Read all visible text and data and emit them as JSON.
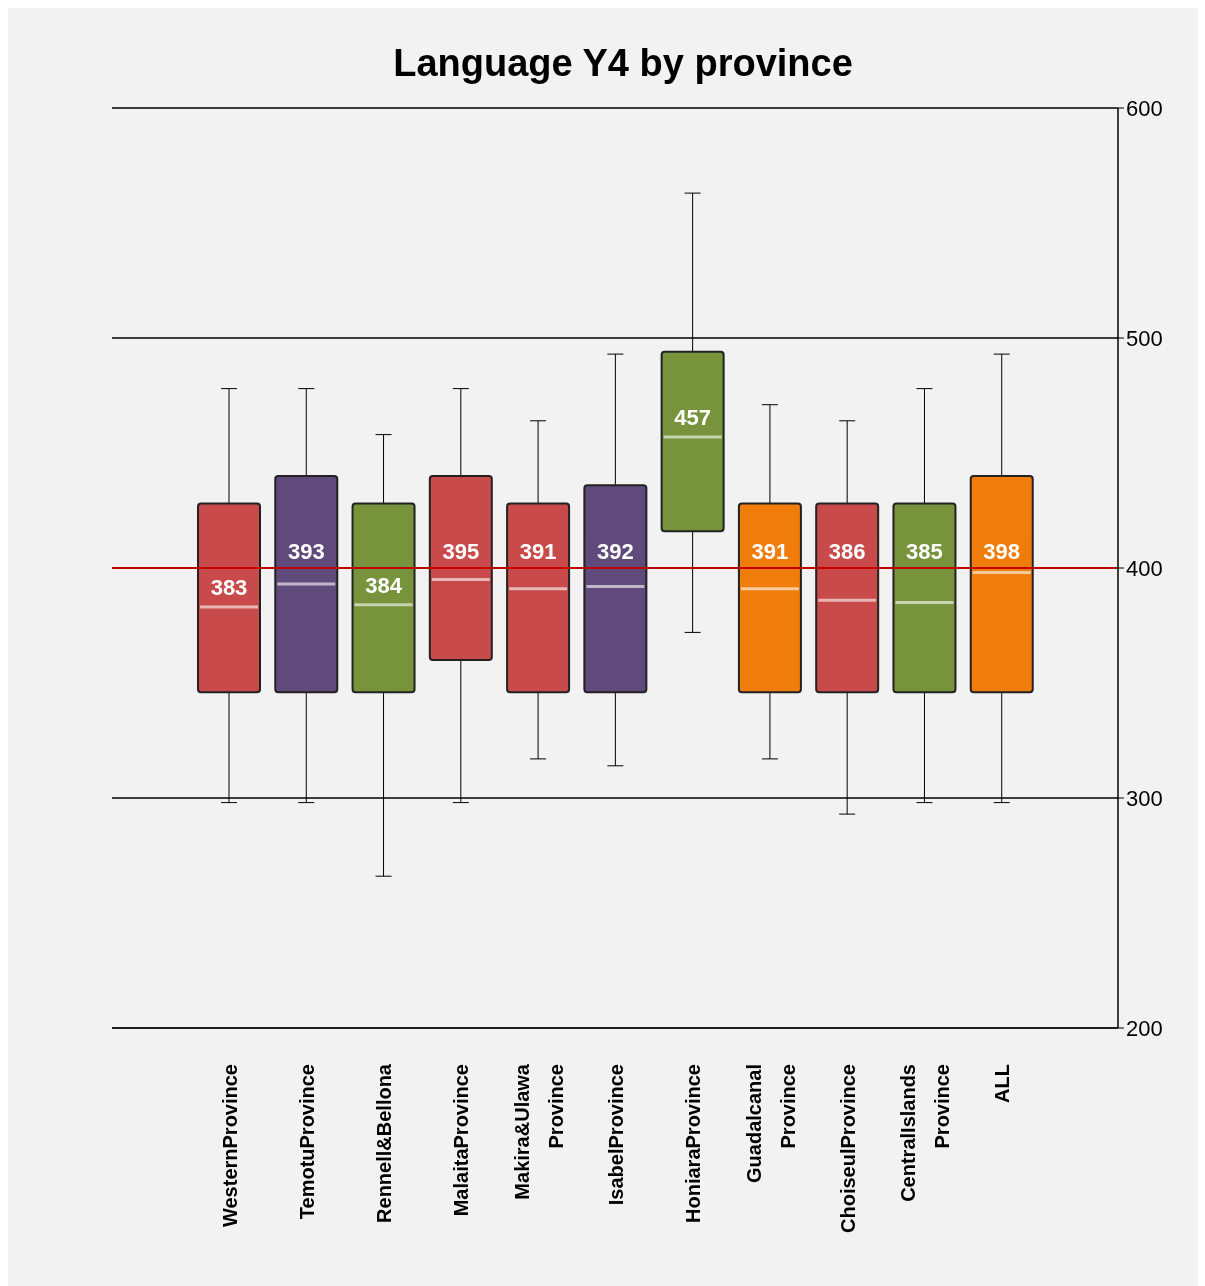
{
  "chart_data": {
    "type": "box",
    "title": "Language Y4 by province",
    "categories": [
      "WesternProvince",
      "TemotuProvince",
      "Rennell&Bellona",
      "MalaitaProvince",
      "Makira&Ulawa Province",
      "IsabelProvince",
      "HoniaraProvince",
      "Guadalcanal Province",
      "ChoiseulProvince",
      "CentralIslands Province",
      "ALL"
    ],
    "boxes": [
      {
        "low": 298,
        "q1": 346,
        "median": 383,
        "q3": 428,
        "high": 478
      },
      {
        "low": 298,
        "q1": 346,
        "median": 393,
        "q3": 440,
        "high": 478
      },
      {
        "low": 266,
        "q1": 346,
        "median": 384,
        "q3": 428,
        "high": 458
      },
      {
        "low": 298,
        "q1": 360,
        "median": 395,
        "q3": 440,
        "high": 478
      },
      {
        "low": 317,
        "q1": 346,
        "median": 391,
        "q3": 428,
        "high": 464
      },
      {
        "low": 314,
        "q1": 346,
        "median": 392,
        "q3": 436,
        "high": 493
      },
      {
        "low": 372,
        "q1": 416,
        "median": 457,
        "q3": 494,
        "high": 563
      },
      {
        "low": 317,
        "q1": 346,
        "median": 391,
        "q3": 428,
        "high": 471
      },
      {
        "low": 293,
        "q1": 346,
        "median": 386,
        "q3": 428,
        "high": 464
      },
      {
        "low": 298,
        "q1": 346,
        "median": 385,
        "q3": 428,
        "high": 478
      },
      {
        "low": 298,
        "q1": 346,
        "median": 398,
        "q3": 440,
        "high": 493
      }
    ],
    "colors": [
      "#c94a4a",
      "#604a7b",
      "#77933c",
      "#c94a4a",
      "#c94a4a",
      "#604a7b",
      "#77933c",
      "#f07c0c",
      "#c94a4a",
      "#77933c",
      "#f07c0c"
    ],
    "value_labels": [
      "383",
      "393",
      "384",
      "395",
      "391",
      "392",
      "457",
      "391",
      "386",
      "385",
      "398"
    ],
    "ylim": [
      200,
      600
    ],
    "yticks": [
      200,
      300,
      400,
      500,
      600
    ],
    "grid": "y",
    "ref_lines": [
      {
        "axis": "y",
        "value": 400,
        "color": "#c00000"
      }
    ]
  }
}
